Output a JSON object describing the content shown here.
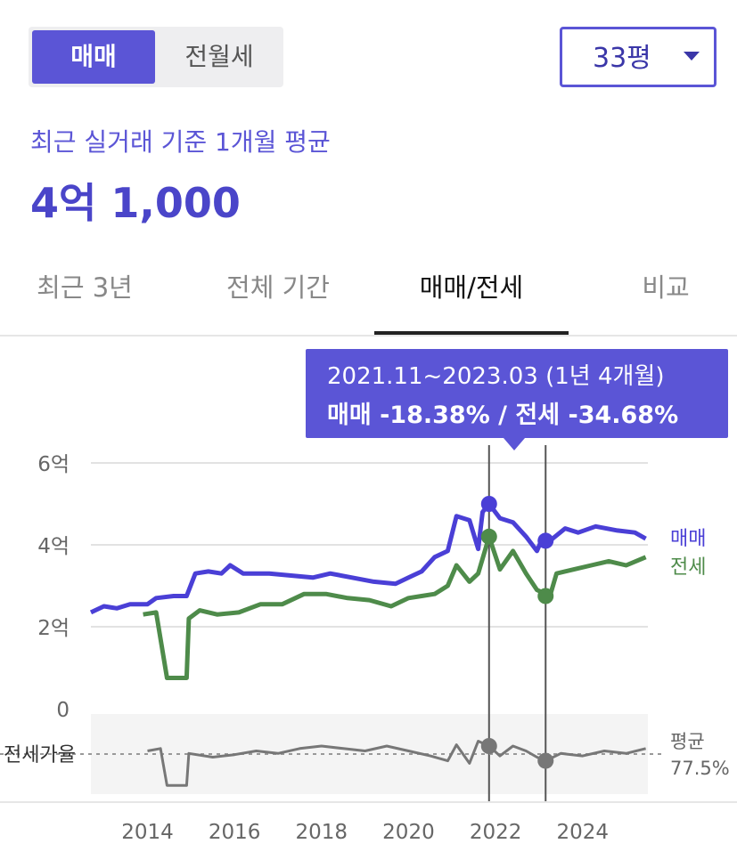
{
  "trade_type": {
    "options": [
      "매매",
      "전월세"
    ],
    "selected": "매매"
  },
  "area_select": {
    "value": "33평",
    "icon": "caret-down-icon"
  },
  "summary": {
    "label": "최근 실거래 기준 1개월 평균",
    "value": "4억 1,000"
  },
  "tabs": [
    {
      "label": "최근 3년"
    },
    {
      "label": "전체 기간"
    },
    {
      "label": "매매/전세",
      "active": true
    },
    {
      "label": "비교"
    }
  ],
  "tooltip": {
    "line1": "2021.11~2023.03 (1년 4개월)",
    "line2": "매매 -18.38%  /  전세 -34.68%"
  },
  "chart_data": {
    "type": "line",
    "x_ticks": [
      2014,
      2016,
      2018,
      2020,
      2022,
      2024
    ],
    "x_tick_labels": [
      "2014",
      "2016",
      "2018",
      "2020",
      "2022",
      "2024"
    ],
    "xlim": [
      2012.7,
      2025.5
    ],
    "y_ticks": [
      0,
      2,
      4,
      6
    ],
    "y_tick_labels": [
      "0",
      "2억",
      "4억",
      "6억"
    ],
    "ylim": [
      0,
      6
    ],
    "grid": true,
    "series": [
      {
        "name": "매매",
        "color": "#4a3fd6",
        "points": [
          [
            2012.7,
            2.35
          ],
          [
            2013.0,
            2.5
          ],
          [
            2013.3,
            2.45
          ],
          [
            2013.6,
            2.55
          ],
          [
            2014.0,
            2.55
          ],
          [
            2014.2,
            2.7
          ],
          [
            2014.6,
            2.75
          ],
          [
            2014.9,
            2.75
          ],
          [
            2015.1,
            3.3
          ],
          [
            2015.4,
            3.35
          ],
          [
            2015.7,
            3.3
          ],
          [
            2015.9,
            3.5
          ],
          [
            2016.2,
            3.3
          ],
          [
            2016.8,
            3.3
          ],
          [
            2017.3,
            3.25
          ],
          [
            2017.8,
            3.2
          ],
          [
            2018.2,
            3.3
          ],
          [
            2018.7,
            3.2
          ],
          [
            2019.2,
            3.1
          ],
          [
            2019.7,
            3.05
          ],
          [
            2020.0,
            3.2
          ],
          [
            2020.3,
            3.35
          ],
          [
            2020.6,
            3.7
          ],
          [
            2020.9,
            3.85
          ],
          [
            2021.1,
            4.7
          ],
          [
            2021.4,
            4.6
          ],
          [
            2021.6,
            3.9
          ],
          [
            2021.7,
            4.8
          ],
          [
            2021.85,
            5.0
          ],
          [
            2022.1,
            4.65
          ],
          [
            2022.4,
            4.55
          ],
          [
            2022.7,
            4.2
          ],
          [
            2022.95,
            3.85
          ],
          [
            2023.05,
            4.1
          ],
          [
            2023.25,
            4.1
          ],
          [
            2023.6,
            4.4
          ],
          [
            2023.9,
            4.3
          ],
          [
            2024.3,
            4.45
          ],
          [
            2024.8,
            4.35
          ],
          [
            2025.2,
            4.3
          ],
          [
            2025.45,
            4.15
          ]
        ]
      },
      {
        "name": "전세",
        "color": "#4e8b4a",
        "points": [
          [
            2013.9,
            2.3
          ],
          [
            2014.2,
            2.35
          ],
          [
            2014.45,
            0.75
          ],
          [
            2014.9,
            0.75
          ],
          [
            2014.95,
            2.2
          ],
          [
            2015.2,
            2.4
          ],
          [
            2015.6,
            2.3
          ],
          [
            2016.1,
            2.35
          ],
          [
            2016.6,
            2.55
          ],
          [
            2017.1,
            2.55
          ],
          [
            2017.6,
            2.8
          ],
          [
            2018.1,
            2.8
          ],
          [
            2018.6,
            2.7
          ],
          [
            2019.1,
            2.65
          ],
          [
            2019.6,
            2.5
          ],
          [
            2020.0,
            2.7
          ],
          [
            2020.3,
            2.75
          ],
          [
            2020.6,
            2.8
          ],
          [
            2020.9,
            3.0
          ],
          [
            2021.1,
            3.5
          ],
          [
            2021.4,
            3.1
          ],
          [
            2021.6,
            3.3
          ],
          [
            2021.85,
            4.2
          ],
          [
            2022.1,
            3.4
          ],
          [
            2022.4,
            3.85
          ],
          [
            2022.7,
            3.3
          ],
          [
            2022.95,
            2.9
          ],
          [
            2023.25,
            2.75
          ],
          [
            2023.4,
            3.3
          ],
          [
            2023.8,
            3.4
          ],
          [
            2024.2,
            3.5
          ],
          [
            2024.6,
            3.6
          ],
          [
            2025.0,
            3.5
          ],
          [
            2025.45,
            3.7
          ]
        ]
      }
    ],
    "markers": [
      {
        "series": "매매",
        "x": 2021.85,
        "y": 5.0
      },
      {
        "series": "매매",
        "x": 2023.15,
        "y": 4.1
      },
      {
        "series": "전세",
        "x": 2021.85,
        "y": 4.2
      },
      {
        "series": "전세",
        "x": 2023.15,
        "y": 2.75
      }
    ],
    "period_lines": [
      2021.85,
      2023.15
    ],
    "legend": [
      "매매",
      "전세"
    ],
    "ratio_panel": {
      "label": "전세가율",
      "avg_label": "평균",
      "avg_value": "77.5%",
      "avg": 77.5,
      "ylim": [
        45,
        110
      ],
      "points": [
        [
          2014.0,
          80
        ],
        [
          2014.3,
          82
        ],
        [
          2014.45,
          52
        ],
        [
          2014.9,
          52
        ],
        [
          2014.95,
          78
        ],
        [
          2015.5,
          75
        ],
        [
          2016.0,
          77
        ],
        [
          2016.5,
          80
        ],
        [
          2017.0,
          78
        ],
        [
          2017.5,
          82
        ],
        [
          2018.0,
          84
        ],
        [
          2018.5,
          82
        ],
        [
          2019.0,
          80
        ],
        [
          2019.5,
          84
        ],
        [
          2020.0,
          80
        ],
        [
          2020.5,
          76
        ],
        [
          2020.9,
          72
        ],
        [
          2021.1,
          85
        ],
        [
          2021.4,
          70
        ],
        [
          2021.6,
          88
        ],
        [
          2021.85,
          84
        ],
        [
          2022.1,
          76
        ],
        [
          2022.4,
          84
        ],
        [
          2022.7,
          80
        ],
        [
          2022.95,
          75
        ],
        [
          2023.15,
          72
        ],
        [
          2023.5,
          78
        ],
        [
          2024.0,
          76
        ],
        [
          2024.5,
          80
        ],
        [
          2025.0,
          78
        ],
        [
          2025.45,
          82
        ]
      ],
      "markers": [
        [
          2021.85,
          84
        ],
        [
          2023.15,
          72
        ]
      ]
    }
  }
}
